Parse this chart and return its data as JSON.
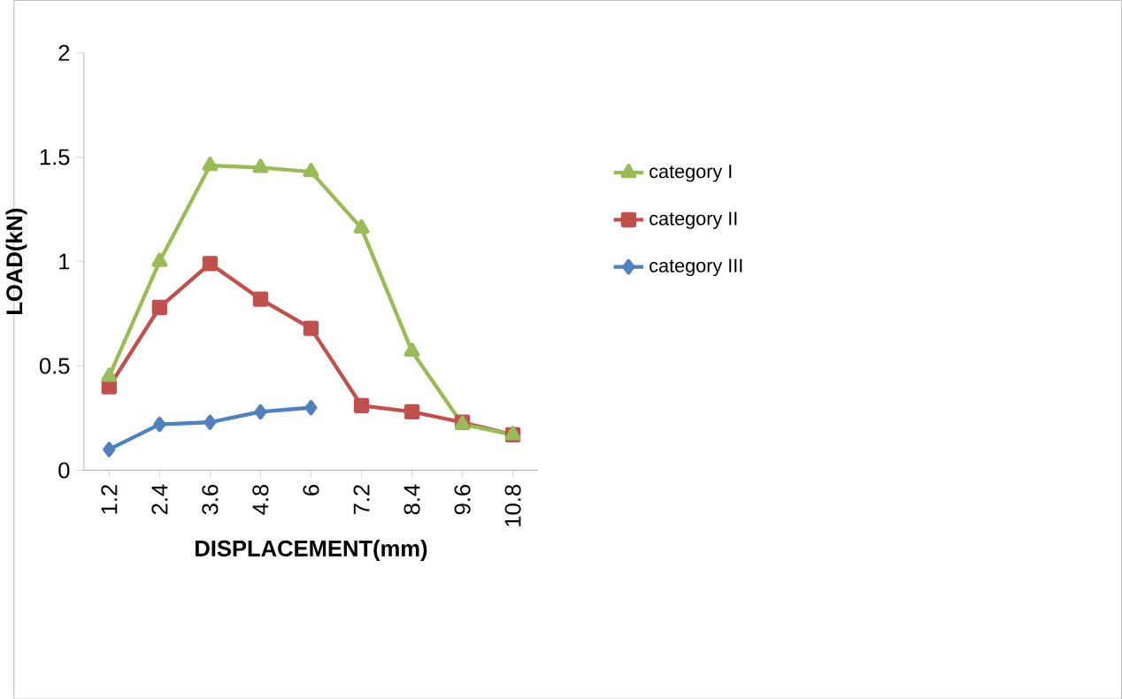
{
  "chart_data": {
    "type": "line",
    "xlabel": "DISPLACEMENT(mm)",
    "ylabel": "LOAD(kN)",
    "categories": [
      "1.2",
      "2.4",
      "3.6",
      "4.8",
      "6",
      "7.2",
      "8.4",
      "9.6",
      "10.8"
    ],
    "series": [
      {
        "name": "category I",
        "color": "#9bbb59",
        "marker": "triangle",
        "values": [
          0.45,
          1.0,
          1.46,
          1.45,
          1.43,
          1.16,
          0.57,
          0.22,
          0.17
        ]
      },
      {
        "name": "category II",
        "color": "#c0504d",
        "marker": "square",
        "values": [
          0.4,
          0.78,
          0.99,
          0.82,
          0.68,
          0.31,
          0.28,
          0.23,
          0.17
        ]
      },
      {
        "name": "category III",
        "color": "#4f81bd",
        "marker": "diamond",
        "values": [
          0.1,
          0.22,
          0.23,
          0.28,
          0.3,
          null,
          null,
          null,
          null
        ]
      }
    ],
    "ylim": [
      0,
      2
    ],
    "yticks": [
      0,
      0.5,
      1,
      1.5,
      2
    ],
    "legend": "right",
    "grid": false
  }
}
